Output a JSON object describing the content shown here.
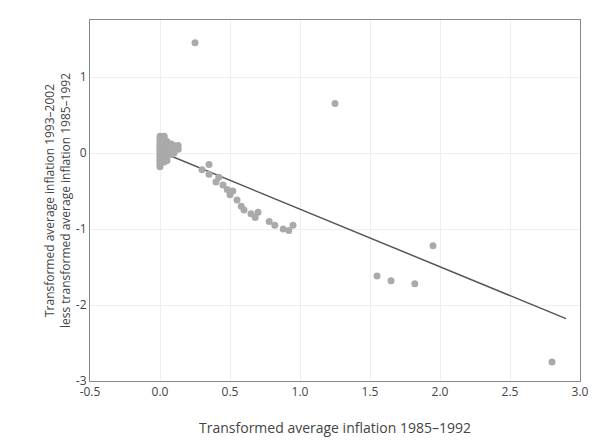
{
  "chart_data": {
    "type": "scatter",
    "xlabel": "Transformed average inflation 1985–1992",
    "ylabel": "Transformed average inflation 1993–2002\nless transformed average inflation 1985–1992",
    "xlim": [
      -0.5,
      3.0
    ],
    "ylim": [
      -3.0,
      1.75
    ],
    "xticks": [
      -0.5,
      {
        "value": 0,
        "label": "0.0"
      },
      0.5,
      {
        "value": 1,
        "label": "1.0"
      },
      1.5,
      {
        "value": 2,
        "label": "2.0"
      },
      2.5,
      {
        "value": 3,
        "label": "3.0"
      }
    ],
    "yticks": [
      -3,
      -2,
      -1,
      0,
      1
    ],
    "grid": true,
    "series": [
      {
        "type": "scatter",
        "color": "#aaaaaa",
        "marker": "circle",
        "x": [
          0.0,
          0.0,
          0.0,
          0.0,
          0.0,
          0.0,
          0.0,
          0.0,
          0.0,
          0.0,
          0.0,
          0.0,
          0.0,
          0.0,
          0.0,
          0.0,
          0.01,
          0.01,
          0.01,
          0.01,
          0.01,
          0.01,
          0.01,
          0.02,
          0.02,
          0.02,
          0.02,
          0.02,
          0.02,
          0.03,
          0.03,
          0.03,
          0.03,
          0.03,
          0.03,
          0.03,
          0.03,
          0.03,
          0.03,
          0.03,
          0.05,
          0.05,
          0.05,
          0.05,
          0.05,
          0.05,
          0.08,
          0.08,
          0.08,
          0.1,
          0.1,
          0.1,
          0.13,
          0.13,
          0.25,
          0.3,
          0.35,
          0.35,
          0.4,
          0.42,
          0.45,
          0.48,
          0.5,
          0.52,
          0.55,
          0.58,
          0.6,
          0.65,
          0.68,
          0.7,
          0.78,
          0.82,
          0.88,
          0.92,
          0.95,
          1.25,
          1.55,
          1.65,
          1.82,
          1.95,
          2.8
        ],
        "values": [
          0.22,
          0.18,
          0.15,
          0.12,
          0.1,
          0.08,
          0.05,
          0.03,
          0.0,
          -0.03,
          -0.05,
          -0.08,
          -0.1,
          -0.12,
          -0.15,
          -0.18,
          0.1,
          0.05,
          0.02,
          -0.02,
          -0.05,
          -0.08,
          -0.12,
          0.08,
          0.05,
          0.02,
          -0.02,
          -0.05,
          -0.08,
          0.22,
          0.18,
          0.15,
          0.12,
          0.08,
          0.05,
          0.02,
          -0.02,
          -0.05,
          -0.08,
          -0.12,
          0.15,
          0.1,
          0.05,
          0.0,
          -0.05,
          -0.1,
          0.12,
          0.05,
          -0.02,
          0.1,
          0.05,
          0.0,
          0.1,
          0.05,
          1.45,
          -0.22,
          -0.28,
          -0.15,
          -0.38,
          -0.32,
          -0.42,
          -0.48,
          -0.55,
          -0.5,
          -0.62,
          -0.7,
          -0.75,
          -0.8,
          -0.85,
          -0.78,
          -0.9,
          -0.95,
          -1.0,
          -1.02,
          -0.95,
          0.65,
          -1.62,
          -1.68,
          -1.72,
          -1.22,
          -2.75
        ]
      },
      {
        "type": "line",
        "color": "#555555",
        "line_style": "solid",
        "x": [
          0.0,
          2.9
        ],
        "values": [
          0.02,
          -2.18
        ]
      }
    ]
  }
}
